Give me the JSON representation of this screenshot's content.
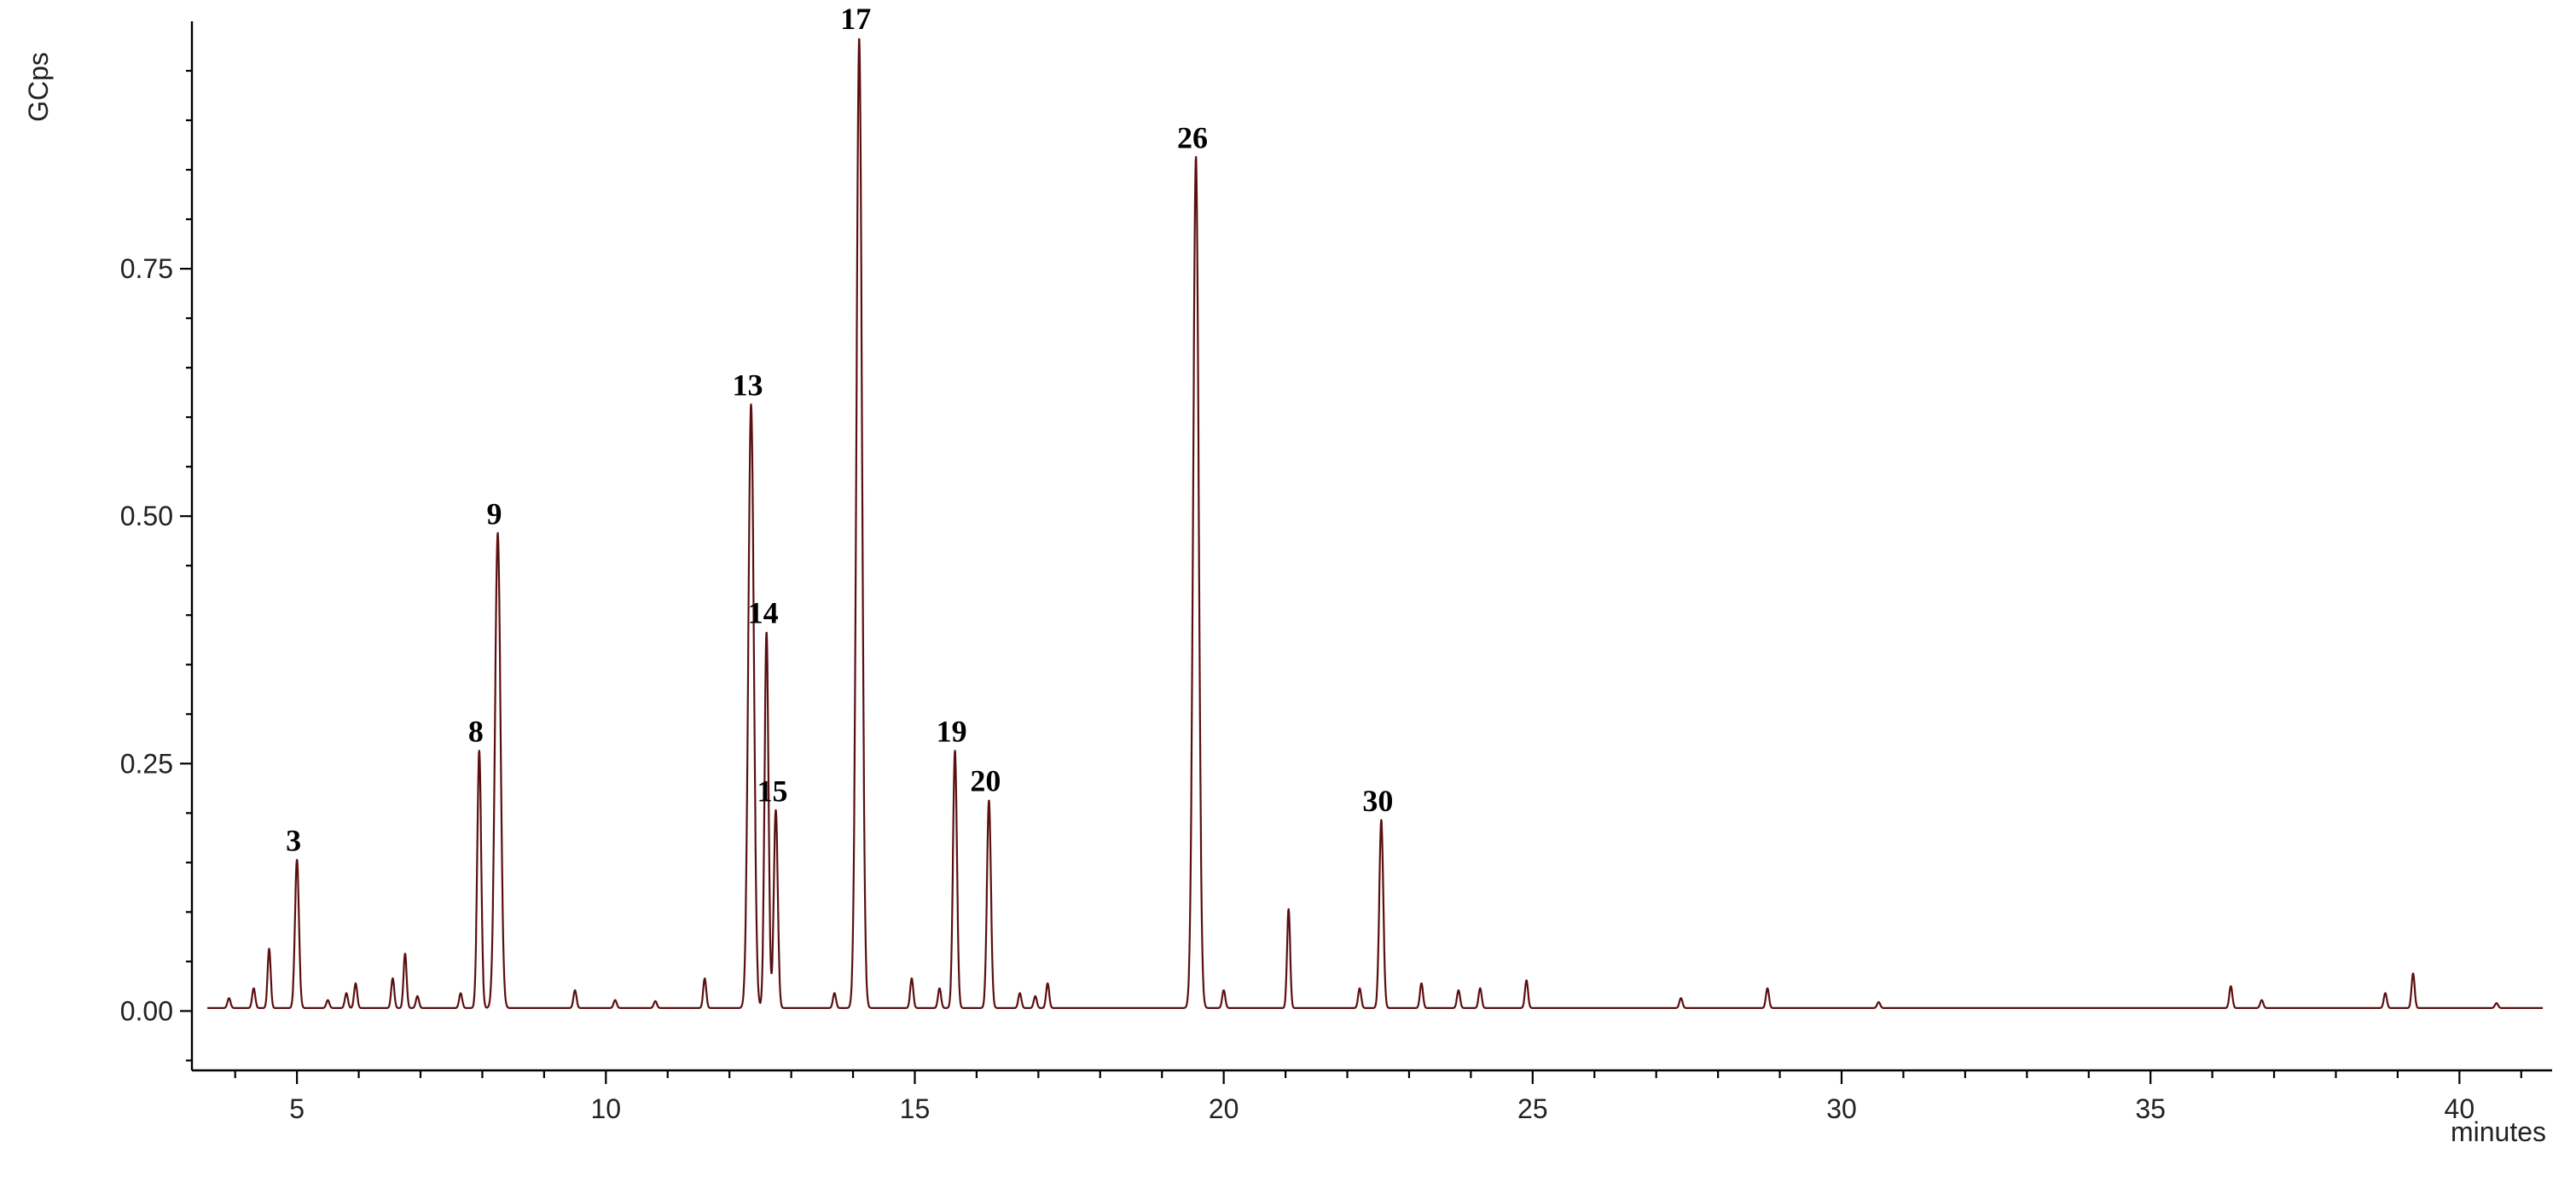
{
  "chart_data": {
    "type": "line",
    "xlabel": "minutes",
    "ylabel": "GCps",
    "xlim": [
      3.3,
      41.5
    ],
    "ylim": [
      -0.06,
      1.0
    ],
    "x_ticks": [
      {
        "value": 5,
        "label": "5"
      },
      {
        "value": 10,
        "label": "10"
      },
      {
        "value": 15,
        "label": "15"
      },
      {
        "value": 20,
        "label": "20"
      },
      {
        "value": 25,
        "label": "25"
      },
      {
        "value": 30,
        "label": "30"
      },
      {
        "value": 35,
        "label": "35"
      },
      {
        "value": 40,
        "label": "40"
      }
    ],
    "y_ticks": [
      {
        "value": 0.0,
        "label": "0.00"
      },
      {
        "value": 0.25,
        "label": "0.25"
      },
      {
        "value": 0.5,
        "label": "0.50"
      },
      {
        "value": 0.75,
        "label": "0.75"
      }
    ],
    "grid": false,
    "trace_color": "#5a0f10",
    "baseline_level": 0.003,
    "peaks": [
      {
        "x": 3.9,
        "y": 0.01
      },
      {
        "x": 4.3,
        "y": 0.02
      },
      {
        "x": 4.55,
        "y": 0.06
      },
      {
        "x": 5.0,
        "y": 0.15
      },
      {
        "x": 5.5,
        "y": 0.008
      },
      {
        "x": 5.8,
        "y": 0.015
      },
      {
        "x": 5.95,
        "y": 0.025
      },
      {
        "x": 6.55,
        "y": 0.03
      },
      {
        "x": 6.75,
        "y": 0.055
      },
      {
        "x": 6.95,
        "y": 0.012
      },
      {
        "x": 7.65,
        "y": 0.015
      },
      {
        "x": 7.95,
        "y": 0.26
      },
      {
        "x": 8.25,
        "y": 0.48
      },
      {
        "x": 9.5,
        "y": 0.018
      },
      {
        "x": 10.15,
        "y": 0.008
      },
      {
        "x": 10.8,
        "y": 0.007
      },
      {
        "x": 11.6,
        "y": 0.03
      },
      {
        "x": 12.35,
        "y": 0.61
      },
      {
        "x": 12.6,
        "y": 0.38
      },
      {
        "x": 12.75,
        "y": 0.2
      },
      {
        "x": 13.7,
        "y": 0.015
      },
      {
        "x": 14.1,
        "y": 0.98
      },
      {
        "x": 14.95,
        "y": 0.03
      },
      {
        "x": 15.4,
        "y": 0.02
      },
      {
        "x": 15.65,
        "y": 0.26
      },
      {
        "x": 16.2,
        "y": 0.21
      },
      {
        "x": 16.7,
        "y": 0.015
      },
      {
        "x": 16.95,
        "y": 0.012
      },
      {
        "x": 17.15,
        "y": 0.025
      },
      {
        "x": 19.55,
        "y": 0.86
      },
      {
        "x": 20.0,
        "y": 0.018
      },
      {
        "x": 21.05,
        "y": 0.1
      },
      {
        "x": 22.2,
        "y": 0.02
      },
      {
        "x": 22.55,
        "y": 0.19
      },
      {
        "x": 23.2,
        "y": 0.025
      },
      {
        "x": 23.8,
        "y": 0.018
      },
      {
        "x": 24.15,
        "y": 0.02
      },
      {
        "x": 24.9,
        "y": 0.028
      },
      {
        "x": 27.4,
        "y": 0.01
      },
      {
        "x": 28.8,
        "y": 0.02
      },
      {
        "x": 30.6,
        "y": 0.006
      },
      {
        "x": 36.3,
        "y": 0.022
      },
      {
        "x": 36.8,
        "y": 0.008
      },
      {
        "x": 38.8,
        "y": 0.015
      },
      {
        "x": 39.25,
        "y": 0.035
      },
      {
        "x": 40.6,
        "y": 0.005
      }
    ],
    "annotations": [
      {
        "text": "3",
        "x": 5.0,
        "y": 0.15
      },
      {
        "text": "8",
        "x": 7.95,
        "y": 0.26
      },
      {
        "text": "9",
        "x": 8.25,
        "y": 0.48
      },
      {
        "text": "13",
        "x": 12.35,
        "y": 0.61
      },
      {
        "text": "14",
        "x": 12.6,
        "y": 0.38
      },
      {
        "text": "15",
        "x": 12.75,
        "y": 0.2
      },
      {
        "text": "17",
        "x": 14.1,
        "y": 0.98
      },
      {
        "text": "19",
        "x": 15.65,
        "y": 0.26
      },
      {
        "text": "20",
        "x": 16.2,
        "y": 0.21
      },
      {
        "text": "26",
        "x": 19.55,
        "y": 0.86
      },
      {
        "text": "30",
        "x": 22.55,
        "y": 0.19
      }
    ]
  }
}
